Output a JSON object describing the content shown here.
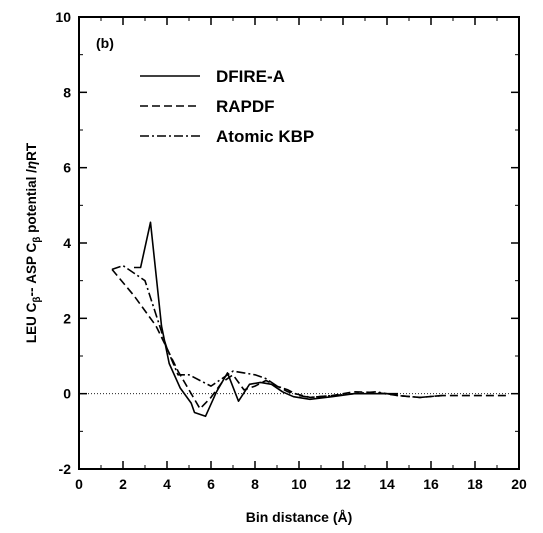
{
  "chart_data": {
    "type": "line",
    "panel_label": "(b)",
    "title": "",
    "xlabel": "Bin distance (Å)",
    "ylabel": "LEU Cβ-- ASP Cβ potential /ηRT",
    "ylabel_parts": {
      "p1": "LEU C",
      "sub1": "β",
      "p2": "-- ASP C",
      "sub2": "β",
      "p3": " potential /",
      "eta": "η",
      "p4": "RT"
    },
    "xlim": [
      0,
      20
    ],
    "ylim": [
      -2,
      10
    ],
    "x_ticks": [
      "0",
      "2",
      "4",
      "6",
      "8",
      "10",
      "12",
      "14",
      "16",
      "18",
      "20"
    ],
    "y_ticks": [
      "-2",
      "0",
      "2",
      "4",
      "6",
      "8",
      "10"
    ],
    "grid": false,
    "zero_reference_line": true,
    "legend_position": "top-left",
    "series": [
      {
        "name": "DFIRE-A",
        "style": "solid",
        "color": "#000000",
        "points": [
          [
            2.5,
            3.35
          ],
          [
            2.8,
            3.35
          ],
          [
            3.25,
            4.55
          ],
          [
            3.75,
            1.8
          ],
          [
            4.1,
            0.8
          ],
          [
            4.6,
            0.15
          ],
          [
            5.1,
            -0.25
          ],
          [
            5.25,
            -0.5
          ],
          [
            5.75,
            -0.6
          ],
          [
            6.25,
            0.05
          ],
          [
            6.75,
            0.55
          ],
          [
            7.25,
            -0.2
          ],
          [
            7.75,
            0.25
          ],
          [
            8.25,
            0.3
          ],
          [
            8.75,
            0.25
          ],
          [
            9.25,
            0.05
          ],
          [
            9.75,
            -0.08
          ],
          [
            10.5,
            -0.15
          ],
          [
            11.5,
            -0.08
          ],
          [
            12.5,
            0.0
          ],
          [
            13.5,
            0.0
          ],
          [
            14.5,
            0.0
          ]
        ]
      },
      {
        "name": "RAPDF",
        "style": "dashed",
        "color": "#000000",
        "points": [
          [
            1.5,
            3.3
          ],
          [
            2.5,
            2.6
          ],
          [
            3.5,
            1.8
          ],
          [
            4.0,
            1.2
          ],
          [
            4.5,
            0.6
          ],
          [
            5.0,
            0.1
          ],
          [
            5.5,
            -0.4
          ],
          [
            6.0,
            -0.1
          ],
          [
            6.5,
            0.3
          ],
          [
            7.0,
            0.5
          ],
          [
            7.5,
            0.1
          ],
          [
            8.0,
            0.2
          ],
          [
            8.5,
            0.35
          ],
          [
            9.0,
            0.2
          ],
          [
            9.5,
            0.05
          ],
          [
            10.5,
            -0.1
          ],
          [
            11.5,
            -0.05
          ],
          [
            12.5,
            0.05
          ],
          [
            13.5,
            0.03
          ],
          [
            14.5,
            -0.05
          ],
          [
            15.5,
            -0.1
          ],
          [
            16.5,
            -0.05
          ],
          [
            17.5,
            -0.05
          ],
          [
            18.5,
            -0.05
          ],
          [
            19.5,
            -0.05
          ]
        ]
      },
      {
        "name": "Atomic KBP",
        "style": "dashdot",
        "color": "#000000",
        "points": [
          [
            1.5,
            3.3
          ],
          [
            2.0,
            3.4
          ],
          [
            2.5,
            3.2
          ],
          [
            3.0,
            3.0
          ],
          [
            3.5,
            2.1
          ],
          [
            4.0,
            1.2
          ],
          [
            4.5,
            0.5
          ],
          [
            5.0,
            0.5
          ],
          [
            5.5,
            0.35
          ],
          [
            6.0,
            0.2
          ],
          [
            6.5,
            0.4
          ],
          [
            7.0,
            0.6
          ],
          [
            7.5,
            0.55
          ],
          [
            8.0,
            0.5
          ],
          [
            8.5,
            0.4
          ],
          [
            9.0,
            0.2
          ],
          [
            9.5,
            0.1
          ],
          [
            10.0,
            -0.05
          ],
          [
            10.5,
            -0.1
          ],
          [
            11.5,
            -0.05
          ],
          [
            12.5,
            0.0
          ],
          [
            13.5,
            0.05
          ],
          [
            14.5,
            -0.05
          ],
          [
            15.5,
            -0.1
          ],
          [
            16.5,
            -0.05
          ]
        ]
      }
    ]
  }
}
